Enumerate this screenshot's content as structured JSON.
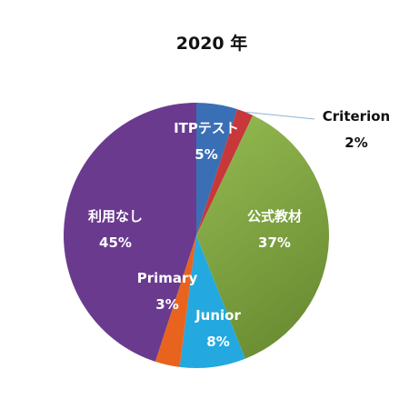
{
  "chart_data": {
    "type": "pie",
    "title": "2020 年",
    "start_angle_deg": 0,
    "direction": "clockwise",
    "slices": [
      {
        "label": "ITPテスト",
        "value": 5,
        "display": "5%",
        "color": "#3a6fb5",
        "label_color": "#ffffff"
      },
      {
        "label": "Criterion",
        "value": 2,
        "display": "2%",
        "color": "#c8373a",
        "label_color": "#111111",
        "leader_line": true
      },
      {
        "label": "公式教材",
        "value": 37,
        "display": "37%",
        "color": "#8ab04a",
        "label_color": "#ffffff",
        "gradient_to": "#6e9236"
      },
      {
        "label": "Junior",
        "value": 8,
        "display": "8%",
        "color": "#23a9df",
        "label_color": "#ffffff"
      },
      {
        "label": "Primary",
        "value": 3,
        "display": "3%",
        "color": "#e8641e",
        "label_color": "#ffffff"
      },
      {
        "label": "利用なし",
        "value": 45,
        "display": "45%",
        "color": "#6a3a8f",
        "label_color": "#ffffff"
      }
    ]
  }
}
